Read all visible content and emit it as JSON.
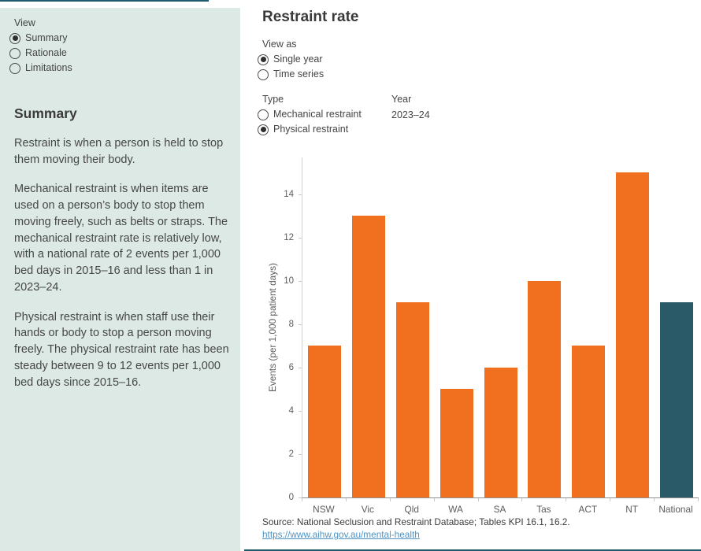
{
  "colors": {
    "sidebar_bg": "#dce9e5",
    "accent_strip": "#1e5a6e",
    "link_blue": "#4e93c4",
    "bar_orange": "#f1701f",
    "national_teal": "#2a5a67"
  },
  "sidebar": {
    "view_label": "View",
    "view_options": [
      {
        "label": "Summary",
        "selected": true
      },
      {
        "label": "Rationale",
        "selected": false
      },
      {
        "label": "Limitations",
        "selected": false
      }
    ],
    "heading": "Summary",
    "paragraphs": [
      "Restraint is when a person is held to stop them moving their body.",
      "Mechanical restraint is when items are used on a person’s body to stop them moving freely, such as belts or straps. The mechanical restraint rate is relatively low, with a national rate of 2 events per 1,000 bed days in 2015–16 and less than 1 in 2023–24.",
      "Physical restraint is when staff use their hands or body to stop a person moving freely. The physical restraint rate has been steady between 9 to 12 events per 1,000 bed days since 2015–16."
    ]
  },
  "main": {
    "title": "Restraint rate",
    "view_as": {
      "label": "View as",
      "options": [
        {
          "label": "Single year",
          "selected": true
        },
        {
          "label": "Time series",
          "selected": false
        }
      ]
    },
    "type": {
      "label": "Type",
      "options": [
        {
          "label": "Mechanical restraint",
          "selected": false
        },
        {
          "label": "Physical restraint",
          "selected": true
        }
      ]
    },
    "year": {
      "label": "Year",
      "value": "2023–24"
    },
    "source_line": "Source: National Seclusion and Restraint Database; Tables KPI 16.1, 16.2.",
    "link": "https://www.aihw.gov.au/mental-health"
  },
  "chart_data": {
    "type": "bar",
    "categories": [
      "NSW",
      "Vic",
      "Qld",
      "WA",
      "SA",
      "Tas",
      "ACT",
      "NT",
      "National"
    ],
    "values": [
      7,
      13,
      9,
      5,
      6,
      10,
      7,
      15,
      9
    ],
    "title": "",
    "xlabel": "",
    "ylabel": "Events (per 1,000 patient days)",
    "yticks": [
      0,
      2,
      4,
      6,
      8,
      10,
      12,
      14
    ],
    "ylim": [
      0,
      15.7
    ],
    "grid": false,
    "legend": false,
    "bar_color": "#f1701f",
    "highlight_category": "National",
    "highlight_color": "#2a5a67"
  }
}
